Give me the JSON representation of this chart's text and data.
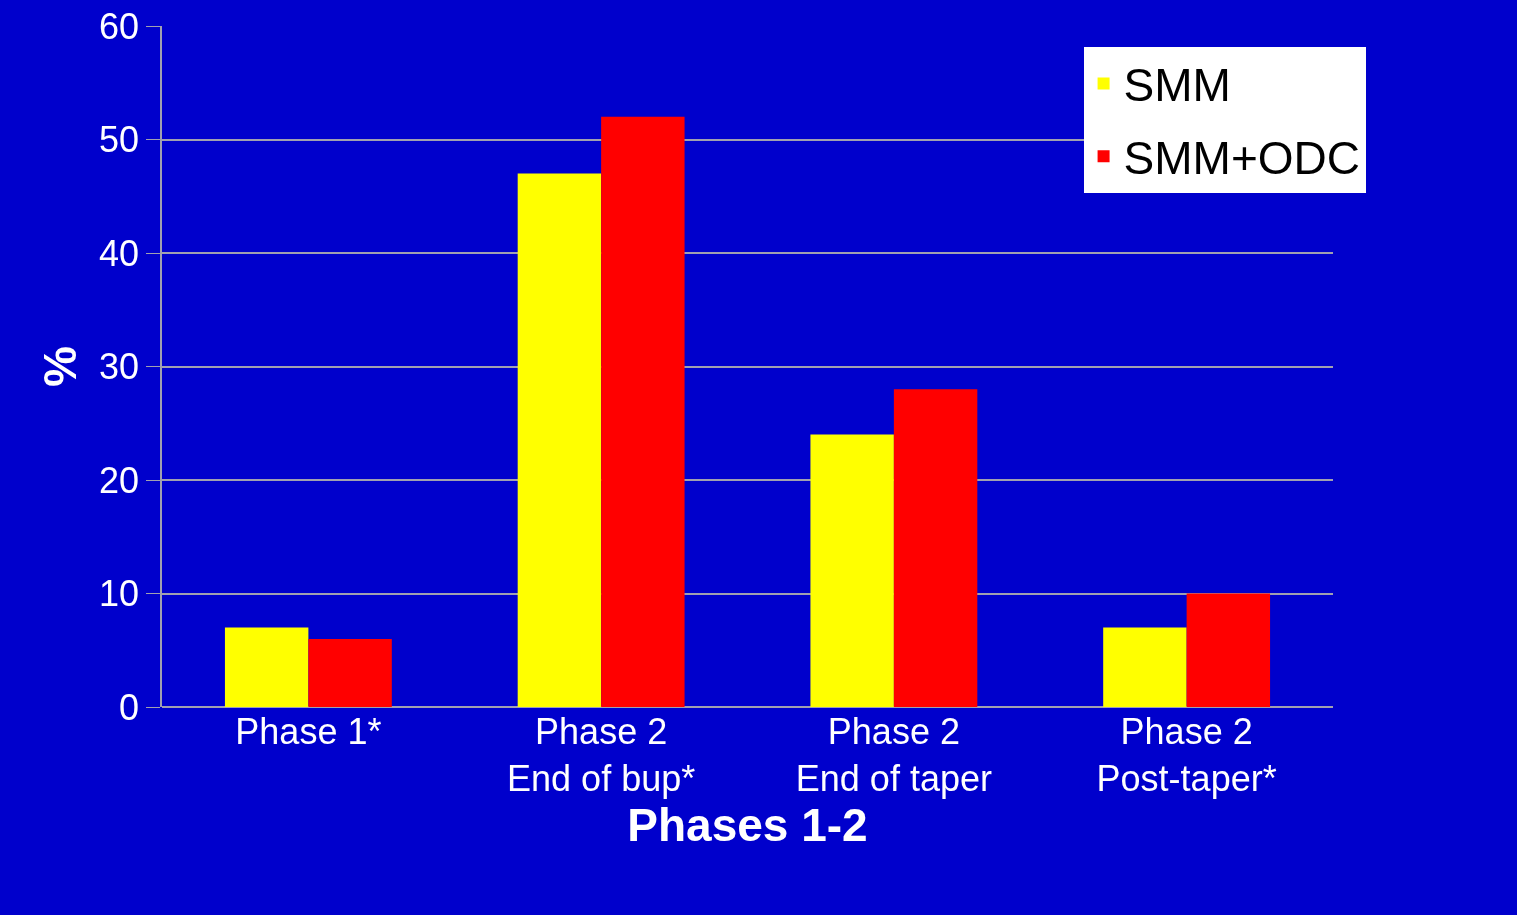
{
  "chart_data": {
    "type": "bar",
    "xlabel": "Phases 1-2",
    "ylabel": "%",
    "categories": [
      "Phase 1*",
      "Phase 2\nEnd of bup*",
      "Phase 2\nEnd of taper",
      "Phase 2\nPost-taper*"
    ],
    "series": [
      {
        "name": "SMM",
        "color": "#ffff00",
        "values": [
          7,
          47,
          24,
          7
        ]
      },
      {
        "name": "SMM+ODC",
        "color": "#ff0000",
        "values": [
          6,
          52,
          28,
          10
        ]
      }
    ],
    "ylim": [
      0,
      60
    ],
    "yticks": [
      0,
      10,
      20,
      30,
      40,
      50,
      60
    ],
    "grid": "y",
    "legend": "top right"
  }
}
